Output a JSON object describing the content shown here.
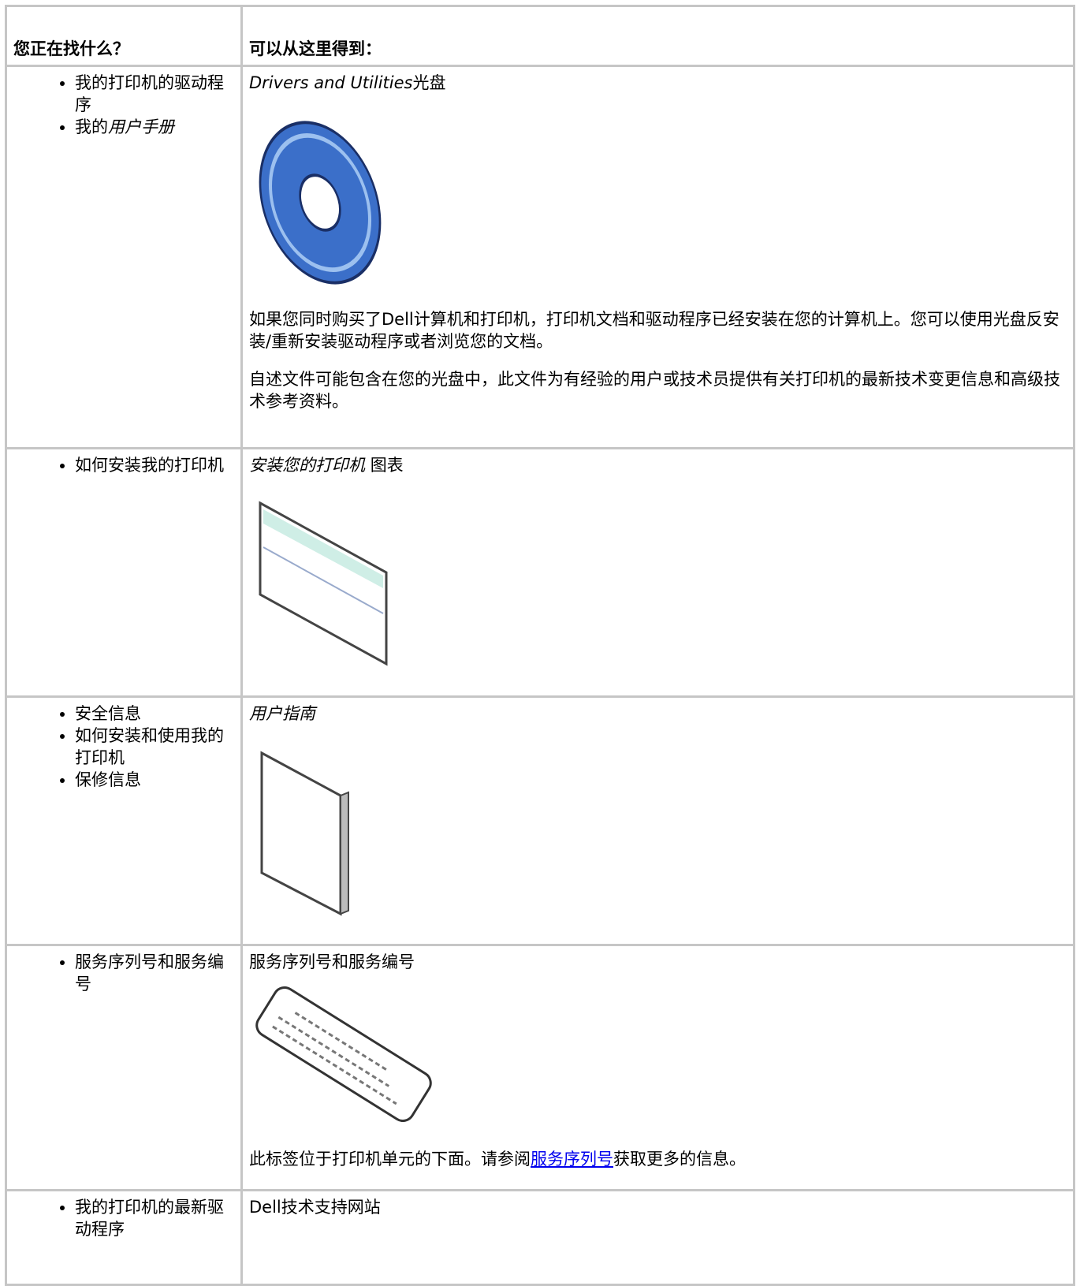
{
  "table": {
    "header": [
      "您正在找什么？",
      "可以从这里得到："
    ],
    "rows": [
      {
        "items": [
          [
            "我的打印机的驱动程序"
          ],
          [
            "我的",
            "用户手册"
          ]
        ],
        "source": [
          "Drivers and Utilities",
          "光盘"
        ],
        "notes": [
          [
            "如果您同时购买了Dell计算机和打印机，打印机文档和驱动程序已经安装在您的计算机上。您可以使用光盘反安装/重新安装驱动程序或者浏览您的文档。"
          ],
          [
            "自述文件可能包含在您的光盘中，此文件为有经验的用户或技术员提供有关打印机的最新技术变更信息和高级技术参考资料。"
          ]
        ]
      },
      {
        "items": [
          [
            "如何安装我的打印机"
          ]
        ],
        "source": [
          "安装您的打印机",
          "图表"
        ]
      },
      {
        "items": [
          [
            "安全信息"
          ],
          [
            "如何安装和使用我的打印机"
          ],
          [
            "保修信息"
          ]
        ],
        "source": [
          "用户指南"
        ]
      },
      {
        "items": [
          [
            "服务序列号和服务编号"
          ]
        ],
        "source": [
          "服务序列号和服务编号"
        ],
        "notes": [
          [
            "此标签位于打印机单元的下面。请参阅",
            "服务序列号",
            "获取更多的信息。"
          ]
        ]
      },
      {
        "items": [
          [
            "我的打印机的最新驱动程序"
          ]
        ],
        "source": [
          "Dell技术支持网站"
        ]
      }
    ]
  }
}
